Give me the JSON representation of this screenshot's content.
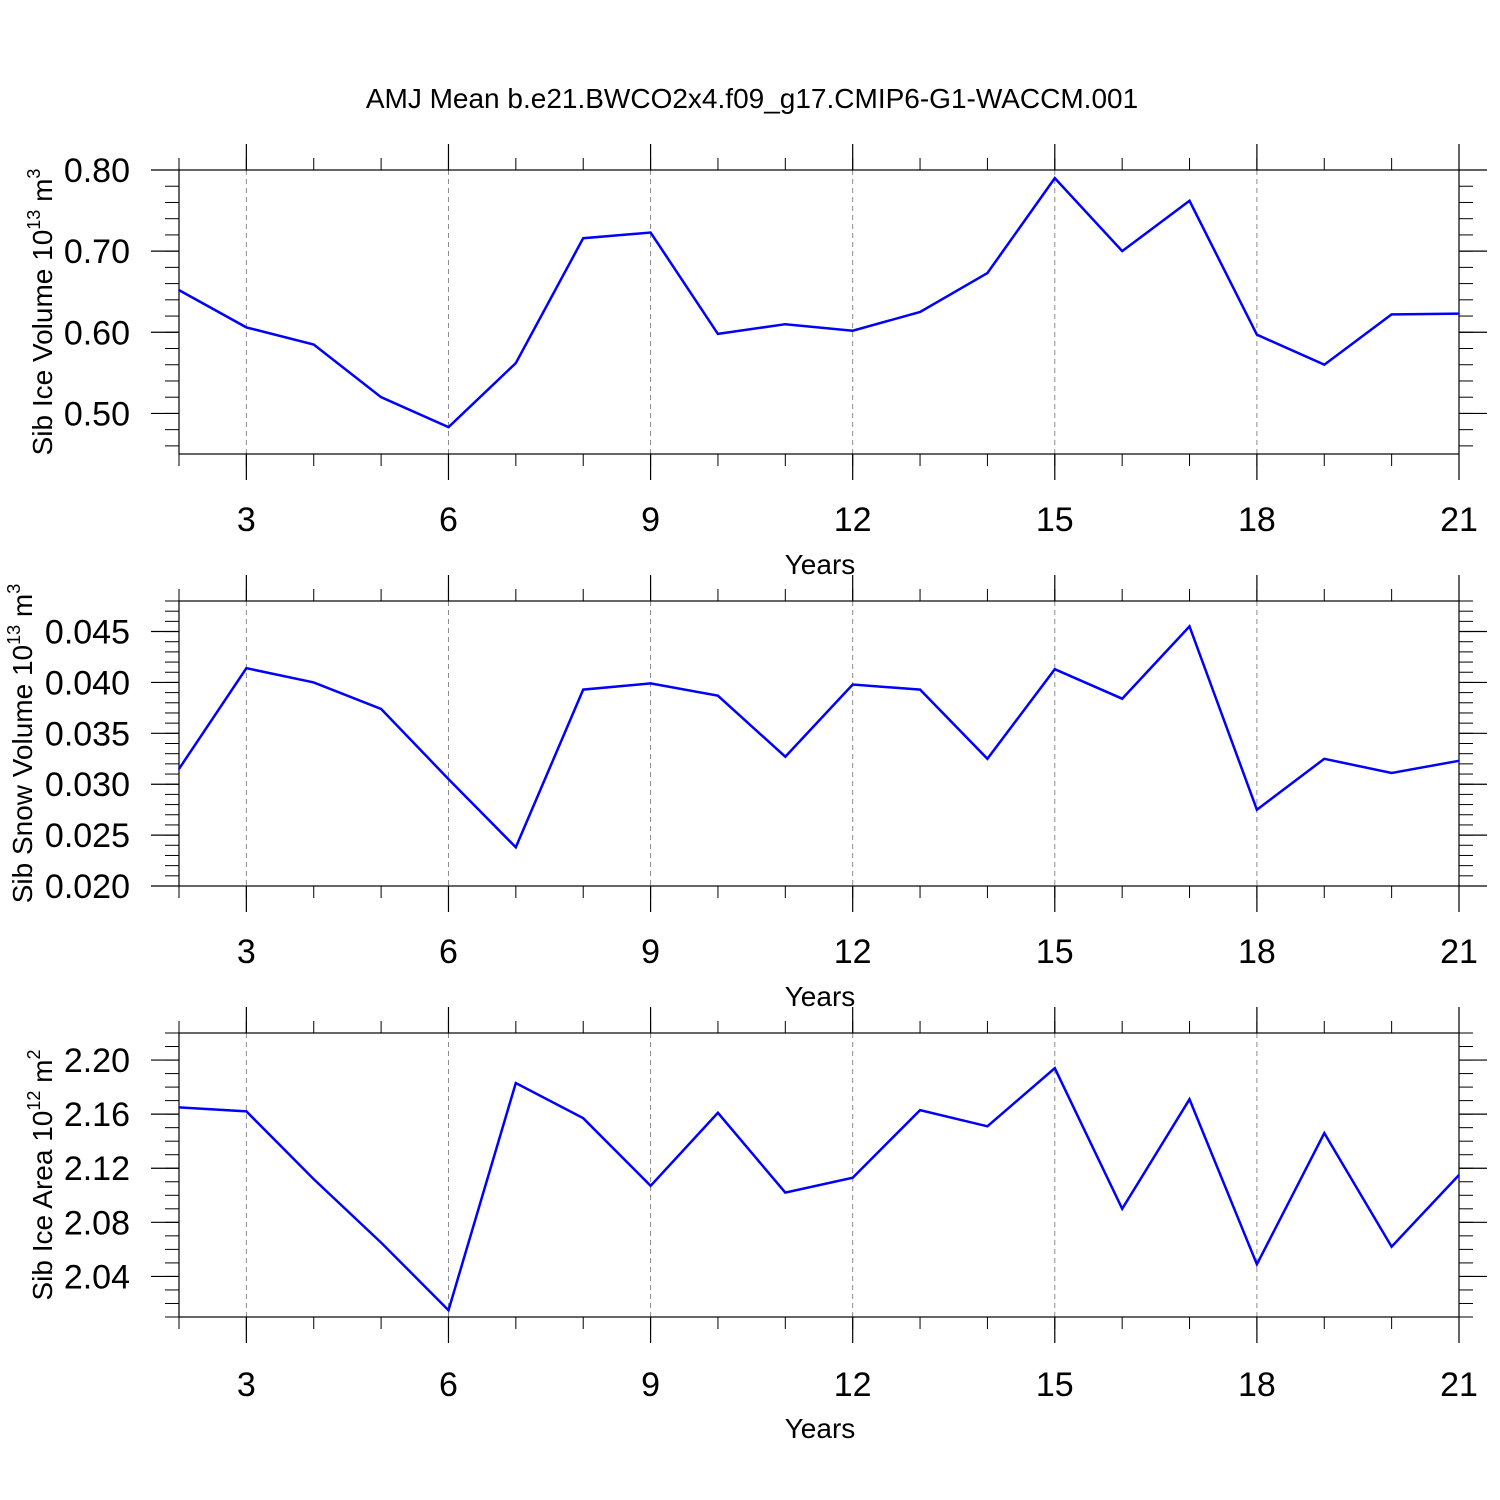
{
  "title": "AMJ Mean b.e21.BWCO2x4.f09_g17.CMIP6-G1-WACCM.001",
  "line_color": "#0000ff",
  "chart_data": [
    {
      "type": "line",
      "ylabel_main": "Sib Ice Volume 10",
      "ylabel_exp1": "13",
      "ylabel_unit": " m",
      "ylabel_exp2": "3",
      "xlabel": "Years",
      "xlim": [
        2,
        21
      ],
      "ylim": [
        0.45,
        0.8
      ],
      "x_ticks": [
        "3",
        "6",
        "9",
        "12",
        "15",
        "18",
        "21"
      ],
      "y_ticks": [
        "0.50",
        "0.60",
        "0.70",
        "0.80"
      ],
      "grid": "vertical dashed at major x ticks",
      "series": [
        {
          "x": [
            2,
            3,
            4,
            5,
            6,
            7,
            8,
            9,
            10,
            11,
            12,
            13,
            14,
            15,
            16,
            17,
            18,
            19,
            20,
            21
          ],
          "values": [
            0.652,
            0.606,
            0.585,
            0.52,
            0.483,
            0.562,
            0.716,
            0.723,
            0.598,
            0.61,
            0.602,
            0.625,
            0.673,
            0.79,
            0.7,
            0.762,
            0.597,
            0.56,
            0.622,
            0.623
          ]
        }
      ]
    },
    {
      "type": "line",
      "ylabel_main": "Sib Snow Volume 10",
      "ylabel_exp1": "13",
      "ylabel_unit": " m",
      "ylabel_exp2": "3",
      "xlabel": "Years",
      "xlim": [
        2,
        21
      ],
      "ylim": [
        0.02,
        0.048
      ],
      "x_ticks": [
        "3",
        "6",
        "9",
        "12",
        "15",
        "18",
        "21"
      ],
      "y_ticks": [
        "0.020",
        "0.025",
        "0.030",
        "0.035",
        "0.040",
        "0.045"
      ],
      "grid": "vertical dashed at major x ticks",
      "series": [
        {
          "x": [
            2,
            3,
            4,
            5,
            6,
            7,
            8,
            9,
            10,
            11,
            12,
            13,
            14,
            15,
            16,
            17,
            18,
            19,
            20,
            21
          ],
          "values": [
            0.0315,
            0.0414,
            0.04,
            0.0374,
            0.0305,
            0.0238,
            0.0393,
            0.0399,
            0.0387,
            0.0327,
            0.0398,
            0.0393,
            0.0325,
            0.0413,
            0.0384,
            0.0455,
            0.0275,
            0.0325,
            0.0311,
            0.0323
          ]
        }
      ]
    },
    {
      "type": "line",
      "ylabel_main": "Sib Ice Area 10",
      "ylabel_exp1": "12",
      "ylabel_unit": " m",
      "ylabel_exp2": "2",
      "xlabel": "Years",
      "xlim": [
        2,
        21
      ],
      "ylim": [
        2.01,
        2.22
      ],
      "x_ticks": [
        "3",
        "6",
        "9",
        "12",
        "15",
        "18",
        "21"
      ],
      "y_ticks": [
        "2.04",
        "2.08",
        "2.12",
        "2.16",
        "2.20"
      ],
      "grid": "vertical dashed at major x ticks",
      "series": [
        {
          "x": [
            2,
            3,
            4,
            5,
            6,
            7,
            8,
            9,
            10,
            11,
            12,
            13,
            14,
            15,
            16,
            17,
            18,
            19,
            20,
            21
          ],
          "values": [
            2.165,
            2.162,
            2.112,
            2.065,
            2.015,
            2.183,
            2.157,
            2.107,
            2.161,
            2.102,
            2.113,
            2.163,
            2.151,
            2.194,
            2.09,
            2.171,
            2.049,
            2.146,
            2.062,
            2.115
          ]
        }
      ]
    }
  ]
}
